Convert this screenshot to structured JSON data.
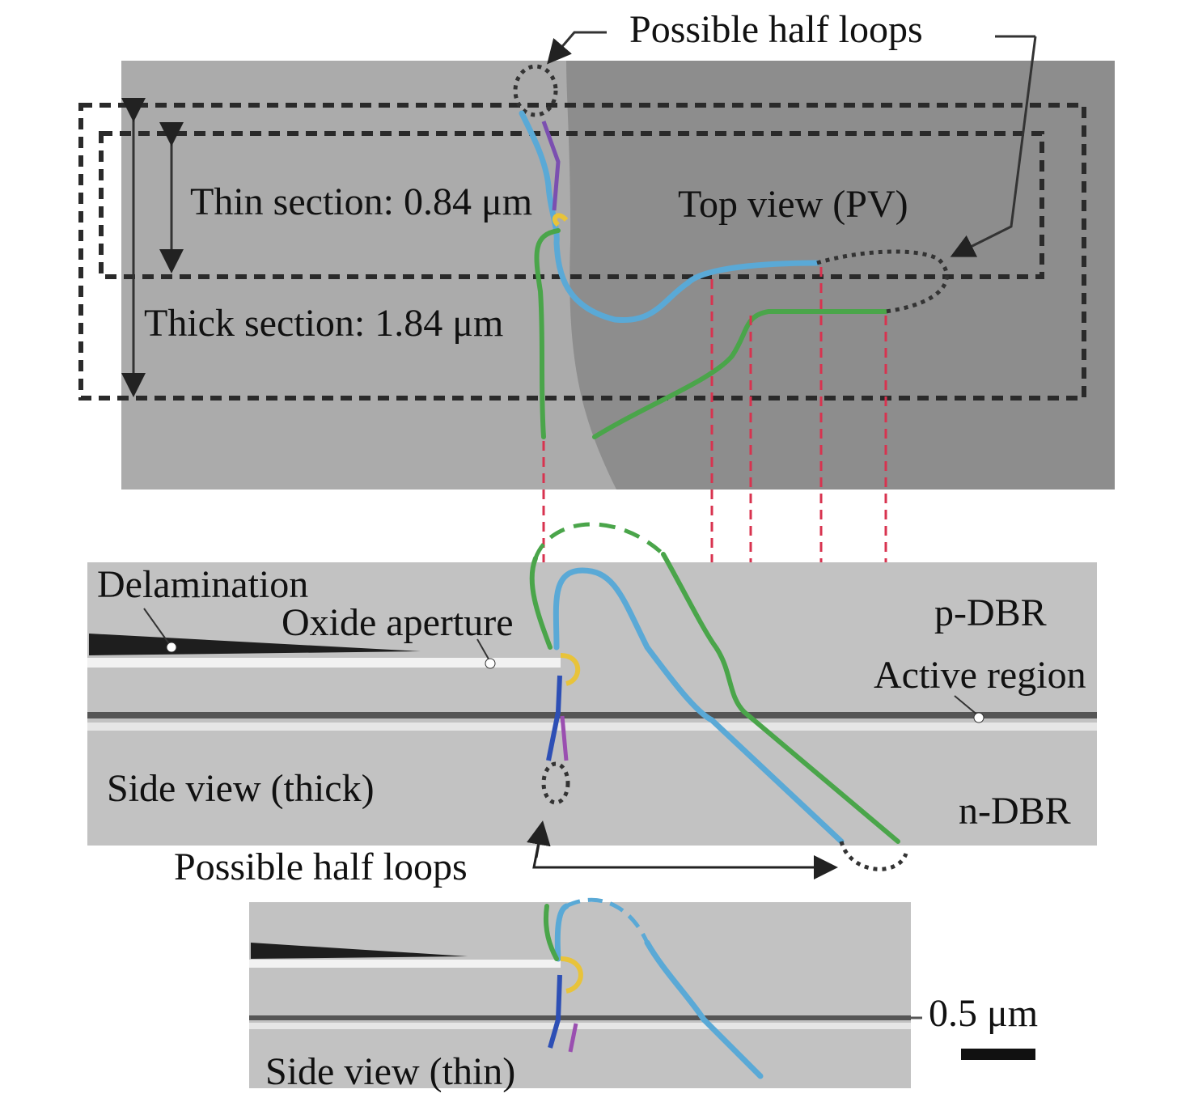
{
  "top_view": {
    "half_loops_label": "Possible half loops",
    "thin_section": "Thin section: 0.84 μm",
    "title": "Top view (PV)",
    "thick_section": "Thick section: 1.84 μm"
  },
  "side_view_thick": {
    "delamination": "Delamination",
    "oxide_aperture": "Oxide aperture",
    "p_dbr": "p-DBR",
    "active_region": "Active region",
    "title": "Side view (thick)",
    "n_dbr": "n-DBR",
    "half_loops_label": "Possible half loops"
  },
  "side_view_thin": {
    "title": "Side view (thin)",
    "scale_bar": "0.5 μm"
  }
}
